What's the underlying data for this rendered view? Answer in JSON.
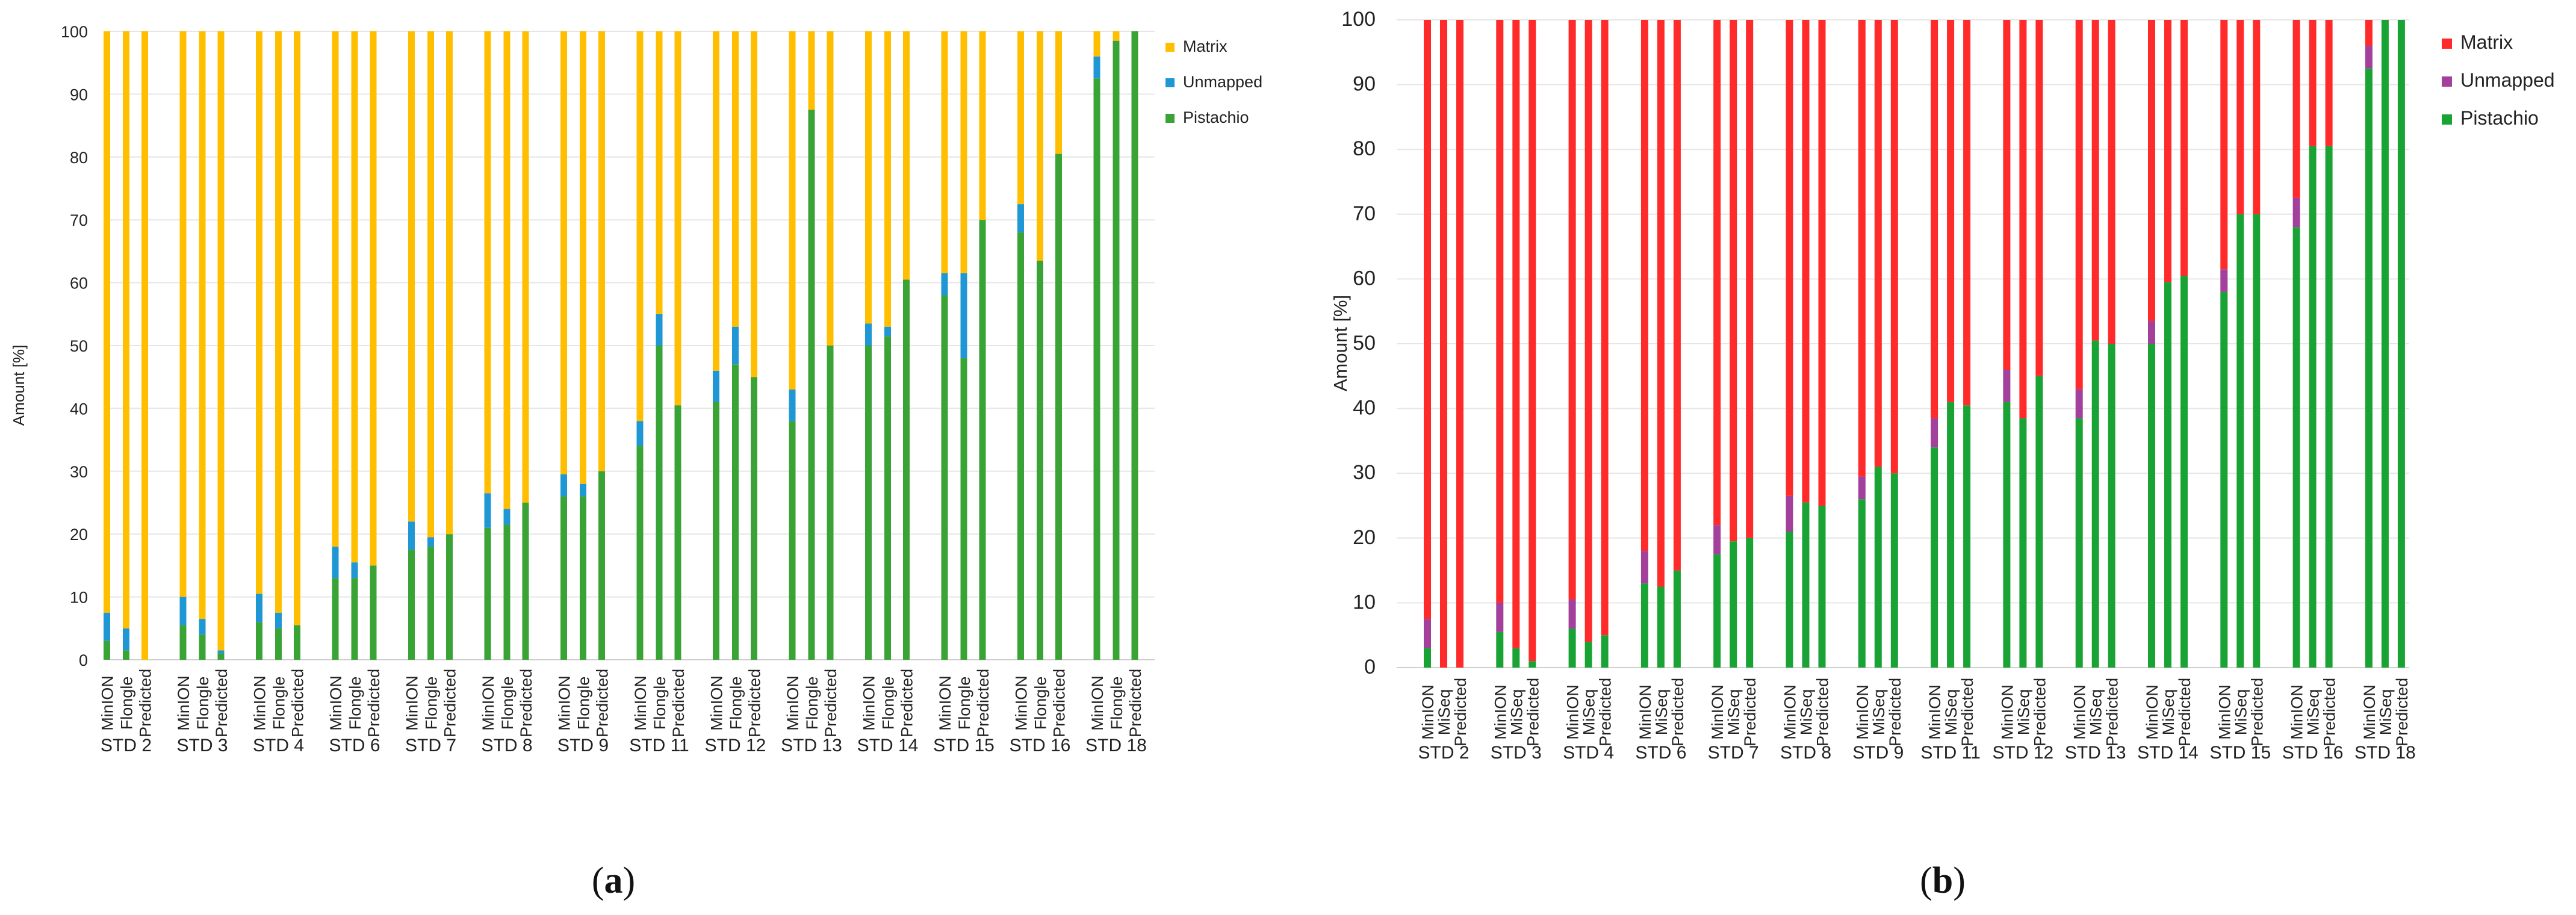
{
  "chart_data": [
    {
      "panel": "a",
      "panel_label_prefix": "(",
      "panel_label_letter": "a",
      "panel_label_suffix": ")",
      "type": "bar",
      "stacked": true,
      "ylabel": "Amount [%]",
      "ylim": [
        0,
        100
      ],
      "yticks": [
        0,
        10,
        20,
        30,
        40,
        50,
        60,
        70,
        80,
        90,
        100
      ],
      "grid": true,
      "legend_position": "right",
      "colors": {
        "Pistachio": "#3aa335",
        "Unmapped": "#1f97d4",
        "Matrix": "#ffbf00"
      },
      "legend": [
        "Matrix",
        "Unmapped",
        "Pistachio"
      ],
      "sub_labels": [
        "MinION",
        "Flongle",
        "Predicted"
      ],
      "groups": [
        "STD 2",
        "STD 3",
        "STD 4",
        "STD 6",
        "STD 7",
        "STD 8",
        "STD 9",
        "STD 11",
        "STD 12",
        "STD 13",
        "STD 14",
        "STD 15",
        "STD 16",
        "STD 18"
      ],
      "series": [
        {
          "name": "Pistachio",
          "values": [
            [
              3,
              1.5,
              0
            ],
            [
              5.5,
              4,
              1
            ],
            [
              6,
              5,
              5.5
            ],
            [
              13,
              13,
              15
            ],
            [
              17.5,
              18,
              20
            ],
            [
              21,
              21.5,
              25
            ],
            [
              26,
              26,
              30
            ],
            [
              34,
              50,
              40.5
            ],
            [
              41,
              47,
              45
            ],
            [
              38,
              87.5,
              50
            ],
            [
              50,
              51.5,
              60.5
            ],
            [
              58,
              48,
              70
            ],
            [
              68,
              63.5,
              80.5
            ],
            [
              92.5,
              98.5,
              100
            ]
          ]
        },
        {
          "name": "Unmapped",
          "values": [
            [
              4.5,
              3.5,
              0
            ],
            [
              4.5,
              2.5,
              0.5
            ],
            [
              4.5,
              2.5,
              0
            ],
            [
              5,
              2.5,
              0
            ],
            [
              4.5,
              1.5,
              0
            ],
            [
              5.5,
              2.5,
              0
            ],
            [
              3.5,
              2,
              0
            ],
            [
              4,
              5,
              0
            ],
            [
              5,
              6,
              0
            ],
            [
              5,
              0,
              0
            ],
            [
              3.5,
              1.5,
              0
            ],
            [
              3.5,
              13.5,
              0
            ],
            [
              4.5,
              0,
              0
            ],
            [
              3.5,
              0,
              0
            ]
          ]
        },
        {
          "name": "Matrix",
          "values": [
            [
              92.5,
              95,
              100
            ],
            [
              90,
              93.5,
              98.5
            ],
            [
              89.5,
              92.5,
              94.5
            ],
            [
              82,
              84.5,
              85
            ],
            [
              78,
              80.5,
              80
            ],
            [
              73.5,
              76,
              75
            ],
            [
              70.5,
              72,
              70
            ],
            [
              62,
              45,
              59.5
            ],
            [
              54,
              47,
              55
            ],
            [
              57,
              12.5,
              50
            ],
            [
              46.5,
              47,
              39.5
            ],
            [
              38.5,
              38.5,
              30
            ],
            [
              27.5,
              36.5,
              19.5
            ],
            [
              4,
              1.5,
              0
            ]
          ]
        }
      ]
    },
    {
      "panel": "b",
      "panel_label_prefix": "(",
      "panel_label_letter": "b",
      "panel_label_suffix": ")",
      "type": "bar",
      "stacked": true,
      "ylabel": "Amount [%]",
      "ylim": [
        0,
        100
      ],
      "yticks": [
        0,
        10,
        20,
        30,
        40,
        50,
        60,
        70,
        80,
        90,
        100
      ],
      "grid": true,
      "legend_position": "right",
      "colors": {
        "Pistachio": "#1aa335",
        "Unmapped": "#a2409c",
        "Matrix": "#ff2a2a"
      },
      "legend": [
        "Matrix",
        "Unmapped",
        "Pistachio"
      ],
      "sub_labels": [
        "MinION",
        "MiSeq",
        "Predicted"
      ],
      "groups": [
        "STD 2",
        "STD 3",
        "STD 4",
        "STD 6",
        "STD 7",
        "STD 8",
        "STD 9",
        "STD 11",
        "STD 12",
        "STD 13",
        "STD 14",
        "STD 15",
        "STD 16",
        "STD 18"
      ],
      "series": [
        {
          "name": "Pistachio",
          "values": [
            [
              3,
              0,
              0
            ],
            [
              5.5,
              3,
              1
            ],
            [
              6,
              4,
              5
            ],
            [
              13,
              12.5,
              15
            ],
            [
              17.5,
              19.5,
              20
            ],
            [
              21,
              25.5,
              25
            ],
            [
              26,
              31,
              30
            ],
            [
              34,
              41,
              40.5
            ],
            [
              41,
              38.5,
              45
            ],
            [
              38.5,
              50.5,
              50
            ],
            [
              50,
              59.5,
              60.5
            ],
            [
              58,
              70,
              70
            ],
            [
              68,
              80.5,
              80.5
            ],
            [
              92.5,
              100,
              100
            ]
          ]
        },
        {
          "name": "Unmapped",
          "values": [
            [
              4.5,
              0,
              0
            ],
            [
              4.5,
              0,
              0
            ],
            [
              4.5,
              0,
              0
            ],
            [
              5,
              0,
              0
            ],
            [
              4.5,
              0,
              0
            ],
            [
              5.5,
              0,
              0
            ],
            [
              3.5,
              0,
              0
            ],
            [
              4.5,
              0,
              0
            ],
            [
              5,
              0,
              0
            ],
            [
              4.5,
              0,
              0
            ],
            [
              3.5,
              0,
              0
            ],
            [
              3.5,
              0,
              0
            ],
            [
              4.5,
              0,
              0
            ],
            [
              3.5,
              0,
              0
            ]
          ]
        },
        {
          "name": "Matrix",
          "values": [
            [
              92.5,
              100,
              100
            ],
            [
              90,
              97,
              99
            ],
            [
              89.5,
              96,
              95
            ],
            [
              82,
              87.5,
              85
            ],
            [
              78,
              80.5,
              80
            ],
            [
              73.5,
              74.5,
              75
            ],
            [
              70.5,
              69,
              70
            ],
            [
              61.5,
              59,
              59.5
            ],
            [
              54,
              61.5,
              55
            ],
            [
              57,
              49.5,
              50
            ],
            [
              46.5,
              40.5,
              39.5
            ],
            [
              38.5,
              30,
              30
            ],
            [
              27.5,
              19.5,
              19.5
            ],
            [
              4,
              0,
              0
            ]
          ]
        }
      ]
    }
  ]
}
